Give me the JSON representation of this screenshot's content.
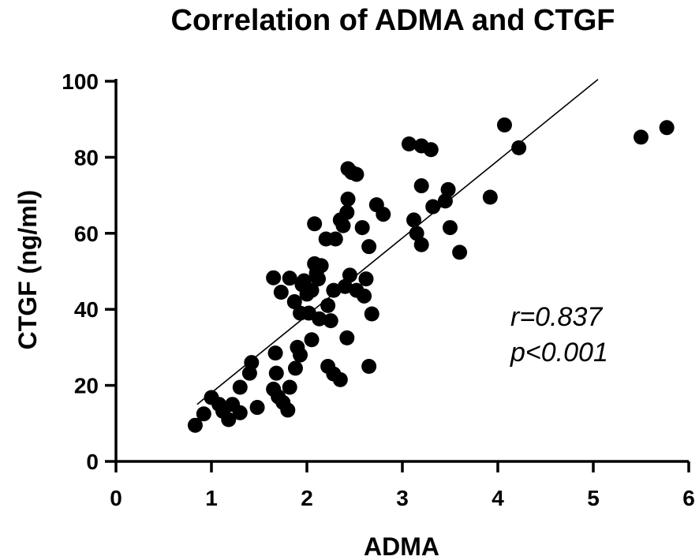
{
  "chart_data": {
    "type": "scatter",
    "title": "Correlation of ADMA and CTGF",
    "xlabel": "ADMA",
    "ylabel": "CTGF (ng/ml)",
    "xlim": [
      0,
      6
    ],
    "ylim": [
      0,
      100
    ],
    "x_ticks": [
      0,
      1,
      2,
      3,
      4,
      5,
      6
    ],
    "y_ticks": [
      0,
      20,
      40,
      60,
      80,
      100
    ],
    "grid": false,
    "annotations": [
      "r=0.837",
      "p<0.001"
    ],
    "fit_line": {
      "x": [
        0.85,
        5.05
      ],
      "y": [
        15.0,
        100.5
      ]
    },
    "series": [
      {
        "points": [
          [
            0.83,
            9.5
          ],
          [
            0.92,
            12.5
          ],
          [
            1.0,
            16.8
          ],
          [
            1.08,
            15.0
          ],
          [
            1.12,
            13.2
          ],
          [
            1.18,
            11.0
          ],
          [
            1.22,
            15.0
          ],
          [
            1.3,
            12.8
          ],
          [
            1.3,
            19.5
          ],
          [
            1.4,
            23.2
          ],
          [
            1.42,
            26.0
          ],
          [
            1.48,
            14.2
          ],
          [
            1.65,
            48.3
          ],
          [
            1.65,
            19.0
          ],
          [
            1.67,
            28.5
          ],
          [
            1.68,
            23.2
          ],
          [
            1.7,
            17.0
          ],
          [
            1.73,
            44.5
          ],
          [
            1.75,
            15.5
          ],
          [
            1.8,
            13.5
          ],
          [
            1.82,
            19.5
          ],
          [
            1.82,
            48.2
          ],
          [
            1.87,
            42.0
          ],
          [
            1.88,
            24.5
          ],
          [
            1.9,
            30.0
          ],
          [
            1.93,
            28.0
          ],
          [
            1.93,
            39.0
          ],
          [
            1.95,
            46.5
          ],
          [
            1.97,
            47.5
          ],
          [
            2.0,
            44.0
          ],
          [
            2.02,
            39.0
          ],
          [
            2.05,
            32.0
          ],
          [
            2.05,
            45.0
          ],
          [
            2.08,
            62.5
          ],
          [
            2.08,
            52.0
          ],
          [
            2.1,
            49.5
          ],
          [
            2.12,
            48.0
          ],
          [
            2.13,
            37.5
          ],
          [
            2.15,
            51.5
          ],
          [
            2.2,
            58.5
          ],
          [
            2.22,
            41.0
          ],
          [
            2.22,
            25.0
          ],
          [
            2.25,
            37.0
          ],
          [
            2.28,
            23.0
          ],
          [
            2.28,
            45.0
          ],
          [
            2.3,
            58.5
          ],
          [
            2.35,
            21.5
          ],
          [
            2.35,
            63.5
          ],
          [
            2.38,
            62.0
          ],
          [
            2.4,
            46.0
          ],
          [
            2.42,
            32.5
          ],
          [
            2.42,
            65.5
          ],
          [
            2.43,
            77.0
          ],
          [
            2.43,
            69.0
          ],
          [
            2.45,
            49.0
          ],
          [
            2.47,
            76.0
          ],
          [
            2.52,
            45.0
          ],
          [
            2.52,
            75.5
          ],
          [
            2.58,
            61.5
          ],
          [
            2.6,
            43.5
          ],
          [
            2.62,
            48.0
          ],
          [
            2.65,
            25.0
          ],
          [
            2.65,
            56.5
          ],
          [
            2.68,
            38.8
          ],
          [
            2.73,
            67.5
          ],
          [
            2.8,
            65.0
          ],
          [
            3.07,
            83.5
          ],
          [
            3.12,
            63.5
          ],
          [
            3.15,
            60.0
          ],
          [
            3.2,
            83.0
          ],
          [
            3.2,
            57.0
          ],
          [
            3.2,
            72.5
          ],
          [
            3.3,
            82.0
          ],
          [
            3.32,
            67.0
          ],
          [
            3.45,
            68.5
          ],
          [
            3.48,
            71.5
          ],
          [
            3.5,
            61.5
          ],
          [
            3.6,
            55.0
          ],
          [
            3.92,
            69.5
          ],
          [
            4.07,
            88.5
          ],
          [
            4.22,
            82.5
          ],
          [
            5.5,
            85.3
          ],
          [
            5.77,
            87.8
          ]
        ]
      }
    ]
  }
}
